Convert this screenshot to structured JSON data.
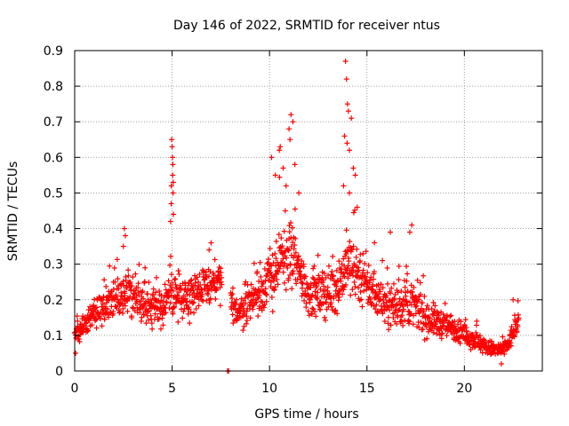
{
  "chart_data": {
    "type": "scatter",
    "title": "Day 146 of 2022, SRMTID for receiver ntus",
    "xlabel": "GPS time / hours",
    "ylabel": "SRMTID / TECUs",
    "xlim": [
      0,
      24
    ],
    "ylim": [
      0,
      0.9
    ],
    "xticks": [
      0,
      5,
      10,
      15,
      20
    ],
    "yticks": [
      0,
      0.1,
      0.2,
      0.3,
      0.4,
      0.5,
      0.6,
      0.7,
      0.8,
      0.9
    ],
    "ytick_labels": [
      "0",
      "0.1",
      "0.2",
      "0.3",
      "0.4",
      "0.5",
      "0.6",
      "0.7",
      "0.8",
      "0.9"
    ],
    "xtick_labels": [
      "0",
      "5",
      "10",
      "15",
      "20"
    ],
    "grid": true,
    "marker": "+",
    "color": "#ff0000",
    "series": [
      {
        "name": "SRMTID",
        "envelope": {
          "x": [
            0.0,
            0.3,
            0.6,
            1.0,
            1.5,
            2.0,
            2.5,
            3.0,
            3.5,
            4.0,
            4.5,
            5.0,
            5.5,
            6.0,
            6.5,
            7.0,
            7.5,
            8.0,
            8.5,
            9.0,
            9.5,
            10.0,
            10.5,
            11.0,
            11.5,
            12.0,
            12.5,
            13.0,
            13.5,
            14.0,
            14.5,
            15.0,
            15.5,
            16.0,
            16.5,
            17.0,
            17.5,
            18.0,
            18.5,
            19.0,
            19.5,
            20.0,
            20.5,
            21.0,
            21.5,
            22.0,
            22.3,
            22.6,
            22.8
          ],
          "mean": [
            0.11,
            0.12,
            0.14,
            0.16,
            0.18,
            0.2,
            0.24,
            0.21,
            0.19,
            0.17,
            0.18,
            0.22,
            0.21,
            0.22,
            0.23,
            0.24,
            0.25,
            0.18,
            0.17,
            0.2,
            0.22,
            0.26,
            0.3,
            0.33,
            0.28,
            0.22,
            0.21,
            0.22,
            0.24,
            0.3,
            0.28,
            0.24,
            0.21,
            0.19,
            0.18,
            0.19,
            0.18,
            0.15,
            0.14,
            0.13,
            0.12,
            0.1,
            0.09,
            0.07,
            0.06,
            0.06,
            0.08,
            0.12,
            0.14
          ],
          "spread": [
            0.04,
            0.05,
            0.06,
            0.07,
            0.07,
            0.08,
            0.09,
            0.08,
            0.08,
            0.08,
            0.08,
            0.09,
            0.08,
            0.08,
            0.08,
            0.08,
            0.08,
            0.06,
            0.07,
            0.08,
            0.09,
            0.11,
            0.13,
            0.14,
            0.11,
            0.09,
            0.09,
            0.09,
            0.1,
            0.13,
            0.12,
            0.1,
            0.08,
            0.08,
            0.08,
            0.09,
            0.08,
            0.07,
            0.06,
            0.05,
            0.05,
            0.04,
            0.04,
            0.03,
            0.03,
            0.03,
            0.04,
            0.04,
            0.04
          ]
        },
        "gaps": [
          [
            7.55,
            8.0
          ]
        ],
        "spikes": [
          {
            "x": 0.05,
            "y": 0.05
          },
          {
            "x": 0.15,
            "y": 0.14
          },
          {
            "x": 2.55,
            "y": 0.4
          },
          {
            "x": 2.6,
            "y": 0.38
          },
          {
            "x": 2.5,
            "y": 0.35
          },
          {
            "x": 4.98,
            "y": 0.65
          },
          {
            "x": 5.0,
            "y": 0.63
          },
          {
            "x": 5.02,
            "y": 0.6
          },
          {
            "x": 5.04,
            "y": 0.58
          },
          {
            "x": 5.03,
            "y": 0.55
          },
          {
            "x": 5.06,
            "y": 0.53
          },
          {
            "x": 4.96,
            "y": 0.52
          },
          {
            "x": 5.05,
            "y": 0.5
          },
          {
            "x": 4.95,
            "y": 0.47
          },
          {
            "x": 5.07,
            "y": 0.44
          },
          {
            "x": 4.92,
            "y": 0.42
          },
          {
            "x": 7.0,
            "y": 0.36
          },
          {
            "x": 6.9,
            "y": 0.34
          },
          {
            "x": 7.85,
            "y": 0.0
          },
          {
            "x": 7.9,
            "y": 0.0
          },
          {
            "x": 10.1,
            "y": 0.6
          },
          {
            "x": 10.3,
            "y": 0.55
          },
          {
            "x": 10.5,
            "y": 0.62
          },
          {
            "x": 10.55,
            "y": 0.63
          },
          {
            "x": 10.7,
            "y": 0.57
          },
          {
            "x": 11.0,
            "y": 0.68
          },
          {
            "x": 11.1,
            "y": 0.72
          },
          {
            "x": 11.2,
            "y": 0.7
          },
          {
            "x": 11.05,
            "y": 0.65
          },
          {
            "x": 10.85,
            "y": 0.52
          },
          {
            "x": 11.3,
            "y": 0.58
          },
          {
            "x": 11.5,
            "y": 0.5
          },
          {
            "x": 13.9,
            "y": 0.87
          },
          {
            "x": 13.95,
            "y": 0.82
          },
          {
            "x": 14.0,
            "y": 0.75
          },
          {
            "x": 14.05,
            "y": 0.73
          },
          {
            "x": 14.2,
            "y": 0.71
          },
          {
            "x": 13.85,
            "y": 0.66
          },
          {
            "x": 13.98,
            "y": 0.64
          },
          {
            "x": 14.1,
            "y": 0.62
          },
          {
            "x": 14.3,
            "y": 0.57
          },
          {
            "x": 14.4,
            "y": 0.55
          },
          {
            "x": 13.8,
            "y": 0.52
          },
          {
            "x": 14.1,
            "y": 0.5
          },
          {
            "x": 14.5,
            "y": 0.46
          },
          {
            "x": 17.3,
            "y": 0.41
          },
          {
            "x": 17.2,
            "y": 0.39
          },
          {
            "x": 16.2,
            "y": 0.39
          },
          {
            "x": 21.9,
            "y": 0.02
          },
          {
            "x": 22.5,
            "y": 0.2
          }
        ]
      }
    ]
  }
}
